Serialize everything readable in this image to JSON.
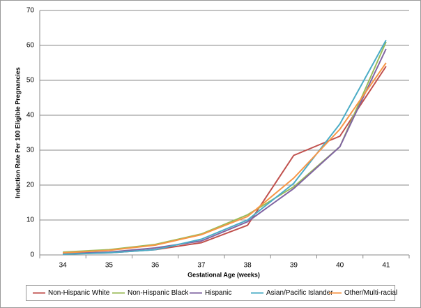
{
  "chart_data": {
    "type": "line",
    "xlabel": "Gestational Age (weeks)",
    "ylabel": "Induction Rate Per 100 Eligible Pregnancies",
    "categories": [
      34,
      35,
      36,
      37,
      38,
      39,
      40,
      41
    ],
    "series": [
      {
        "name": "Non-Hispanic White",
        "color": "#c0504d",
        "values": [
          0.3,
          0.6,
          1.5,
          3.5,
          8.5,
          28.5,
          34,
          54
        ]
      },
      {
        "name": "Non-Hispanic Black",
        "color": "#9bbb59",
        "values": [
          0.8,
          1.5,
          3,
          6,
          11.5,
          19.5,
          31,
          61
        ]
      },
      {
        "name": "Hispanic",
        "color": "#8064a2",
        "values": [
          0.4,
          0.8,
          2,
          4,
          9.5,
          19,
          31,
          59
        ]
      },
      {
        "name": "Asian/Pacific Islander",
        "color": "#4bacc6",
        "values": [
          0.2,
          0.6,
          1.5,
          4.5,
          10,
          20.5,
          37.5,
          61.5
        ]
      },
      {
        "name": "Other/Multi-racial",
        "color": "#f79646",
        "values": [
          0.6,
          1.3,
          2.8,
          5.8,
          11,
          22,
          36,
          55
        ]
      }
    ],
    "ylim": [
      0,
      70
    ],
    "yticks": [
      0,
      10,
      20,
      30,
      40,
      50,
      60,
      70
    ],
    "grid": true,
    "legend": "bottom"
  }
}
